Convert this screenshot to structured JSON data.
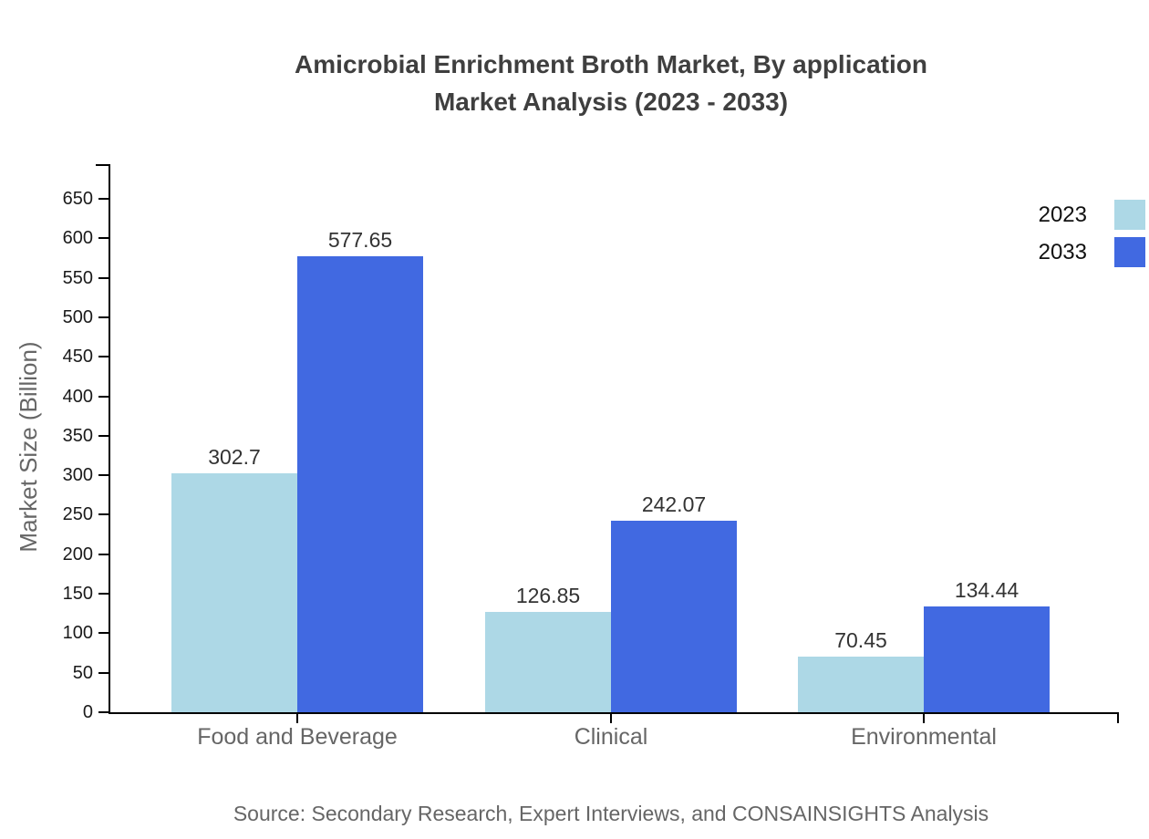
{
  "title": {
    "line1": "Amicrobial Enrichment Broth Market, By application",
    "line2": "Market Analysis (2023 - 2033)"
  },
  "source": "Source: Secondary Research, Expert Interviews, and CONSAINSIGHTS Analysis",
  "legend": {
    "items": [
      {
        "label": "2023",
        "color": "#ADD8E6"
      },
      {
        "label": "2033",
        "color": "#4169E1"
      }
    ]
  },
  "colors": {
    "series_2023": "#ADD8E6",
    "series_2033": "#4169E1",
    "axis": "#000000",
    "title_text": "#3f3f3f",
    "tick_label": "#1a1a1a",
    "category_label": "#666666",
    "value_label": "#333333",
    "source_text": "#666666"
  },
  "chart_data": {
    "type": "bar",
    "title": "Amicrobial Enrichment Broth Market, By application Market Analysis (2023 - 2033)",
    "categories": [
      "Food and Beverage",
      "Clinical",
      "Environmental"
    ],
    "series": [
      {
        "name": "2023",
        "color": "#ADD8E6",
        "values": [
          302.7,
          126.85,
          70.45
        ]
      },
      {
        "name": "2033",
        "color": "#4169E1",
        "values": [
          577.65,
          242.07,
          134.44
        ]
      }
    ],
    "xlabel": "",
    "ylabel": "Market Size (Billion)",
    "ylim": [
      0,
      650
    ],
    "yticks": [
      0,
      50,
      100,
      150,
      200,
      250,
      300,
      350,
      400,
      450,
      500,
      550,
      600,
      650
    ],
    "grid": false,
    "legend_position": "top-right",
    "value_labels": true
  }
}
